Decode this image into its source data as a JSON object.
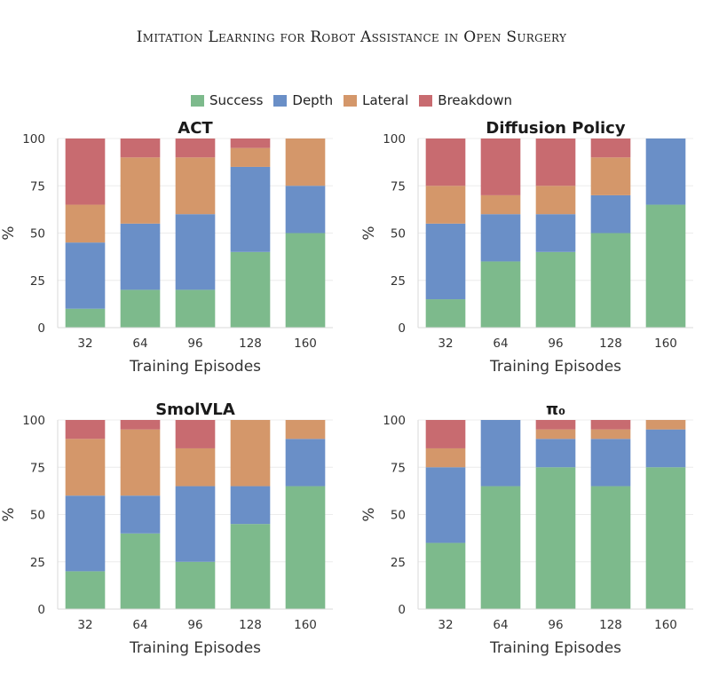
{
  "header": "Imitation Learning for Robot Assistance in Open Surgery",
  "caption": "",
  "legend": [
    {
      "name": "Success",
      "color": "#7dba8c"
    },
    {
      "name": "Depth",
      "color": "#6a8fc7"
    },
    {
      "name": "Lateral",
      "color": "#d4976a"
    },
    {
      "name": "Breakdown",
      "color": "#c86b70"
    }
  ],
  "chart_data": [
    {
      "type": "bar",
      "stacked": true,
      "title": "ACT",
      "xlabel": "Training Episodes",
      "ylabel": "%",
      "ylim": [
        0,
        100
      ],
      "yticks": [
        0,
        25,
        50,
        75,
        100
      ],
      "categories": [
        "32",
        "64",
        "96",
        "128",
        "160"
      ],
      "series": [
        {
          "name": "Success",
          "values": [
            10,
            20,
            20,
            40,
            50
          ]
        },
        {
          "name": "Depth",
          "values": [
            35,
            35,
            40,
            45,
            25
          ]
        },
        {
          "name": "Lateral",
          "values": [
            20,
            35,
            30,
            10,
            25
          ]
        },
        {
          "name": "Breakdown",
          "values": [
            35,
            10,
            10,
            5,
            0
          ]
        }
      ]
    },
    {
      "type": "bar",
      "stacked": true,
      "title": "Diffusion Policy",
      "xlabel": "Training Episodes",
      "ylabel": "%",
      "ylim": [
        0,
        100
      ],
      "yticks": [
        0,
        25,
        50,
        75,
        100
      ],
      "categories": [
        "32",
        "64",
        "96",
        "128",
        "160"
      ],
      "series": [
        {
          "name": "Success",
          "values": [
            15,
            35,
            40,
            50,
            65
          ]
        },
        {
          "name": "Depth",
          "values": [
            40,
            25,
            20,
            20,
            35
          ]
        },
        {
          "name": "Lateral",
          "values": [
            20,
            10,
            15,
            20,
            0
          ]
        },
        {
          "name": "Breakdown",
          "values": [
            25,
            30,
            25,
            10,
            0
          ]
        }
      ]
    },
    {
      "type": "bar",
      "stacked": true,
      "title": "SmolVLA",
      "xlabel": "Training Episodes",
      "ylabel": "%",
      "ylim": [
        0,
        100
      ],
      "yticks": [
        0,
        25,
        50,
        75,
        100
      ],
      "categories": [
        "32",
        "64",
        "96",
        "128",
        "160"
      ],
      "series": [
        {
          "name": "Success",
          "values": [
            20,
            40,
            25,
            45,
            65
          ]
        },
        {
          "name": "Depth",
          "values": [
            40,
            20,
            40,
            20,
            25
          ]
        },
        {
          "name": "Lateral",
          "values": [
            30,
            35,
            20,
            35,
            10
          ]
        },
        {
          "name": "Breakdown",
          "values": [
            10,
            5,
            15,
            0,
            0
          ]
        }
      ]
    },
    {
      "type": "bar",
      "stacked": true,
      "title": "π₀",
      "xlabel": "Training Episodes",
      "ylabel": "%",
      "ylim": [
        0,
        100
      ],
      "yticks": [
        0,
        25,
        50,
        75,
        100
      ],
      "categories": [
        "32",
        "64",
        "96",
        "128",
        "160"
      ],
      "series": [
        {
          "name": "Success",
          "values": [
            35,
            65,
            75,
            65,
            75
          ]
        },
        {
          "name": "Depth",
          "values": [
            40,
            35,
            15,
            25,
            20
          ]
        },
        {
          "name": "Lateral",
          "values": [
            10,
            0,
            5,
            5,
            5
          ]
        },
        {
          "name": "Breakdown",
          "values": [
            15,
            0,
            5,
            5,
            0
          ]
        }
      ]
    }
  ]
}
